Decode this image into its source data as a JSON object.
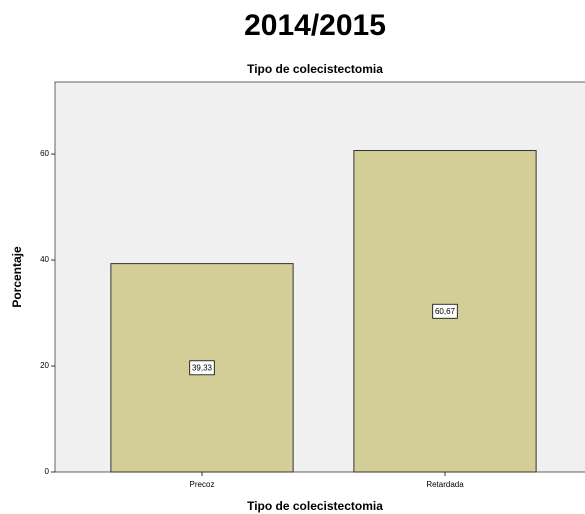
{
  "chart_data": {
    "type": "bar",
    "title": "2014/2015",
    "subtitle": "Tipo de colecistectomia",
    "x_label": "Tipo de colecistectomia",
    "y_label": "Porcentaje",
    "categories": [
      "Precoz",
      "Retardada"
    ],
    "values": [
      39.33,
      60.67
    ],
    "value_labels": [
      "39,33",
      "60,67"
    ],
    "color": "#d3ce97",
    "ylim": [
      0,
      73.6
    ],
    "yticks": [
      0,
      20,
      40,
      60
    ],
    "grid": false
  }
}
